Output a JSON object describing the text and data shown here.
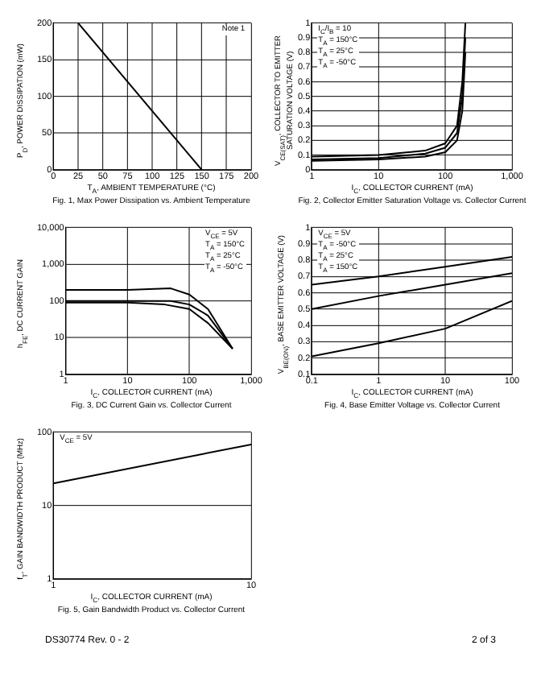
{
  "chart_data": [
    {
      "type": "line",
      "title": "Fig. 1, Max Power Dissipation vs. Ambient Temperature",
      "xlabel": "T$_{A}$, AMBIENT TEMPERATURE (°C)",
      "ylabel": "P$_{D}$, POWER DISSIPATION (mW)",
      "x": [
        25,
        150
      ],
      "series": [
        {
          "color": "#000000",
          "values": [
            200,
            0
          ]
        }
      ],
      "xlim": [
        0,
        200
      ],
      "xticks": [
        0,
        25,
        50,
        75,
        100,
        125,
        150,
        175,
        200
      ],
      "ylim": [
        0,
        200
      ],
      "yticks": [
        0,
        50,
        100,
        150,
        200
      ],
      "grid": true,
      "legend": false,
      "marker": "none",
      "line_style": "solid",
      "annotations": [
        "Note 1"
      ]
    },
    {
      "type": "line",
      "title": "Fig. 2, Collector Emitter Saturation Voltage vs. Collector Current",
      "xlabel": "I$_{C}$, COLLECTOR CURRENT (mA)",
      "ylabel": "V$_{CE(SAT)}$, COLLECTOR TO EMITTER SATURATION VOLTAGE (V)",
      "log": "x",
      "series": [
        {
          "color": "#000000",
          "x": [
            1,
            10,
            50,
            100,
            150,
            180,
            200
          ],
          "values": [
            0.09,
            0.1,
            0.13,
            0.18,
            0.3,
            0.6,
            1.0
          ]
        },
        {
          "color": "#000000",
          "x": [
            1,
            10,
            50,
            100,
            150,
            180,
            200
          ],
          "values": [
            0.07,
            0.08,
            0.11,
            0.15,
            0.25,
            0.5,
            0.9
          ]
        },
        {
          "color": "#000000",
          "x": [
            1,
            10,
            50,
            100,
            150,
            180,
            200
          ],
          "values": [
            0.06,
            0.07,
            0.09,
            0.12,
            0.2,
            0.4,
            0.8
          ]
        }
      ],
      "xlim": [
        1,
        1000
      ],
      "xticks": [
        1,
        10,
        100,
        {
          "value": 1000,
          "label": "1,000"
        }
      ],
      "ylim": [
        0,
        1.0
      ],
      "yticks": [
        0,
        0.1,
        0.2,
        0.3,
        0.4,
        0.5,
        0.6,
        0.7,
        0.8,
        0.9,
        1.0
      ],
      "grid": true,
      "legend": false,
      "marker": "none",
      "line_style": "solid",
      "annotations": [
        "I$_{C}$/I$_{B}$ = 10",
        "T$_{A}$ = 150°C",
        "T$_{A}$ = 25°C",
        "T$_{A}$ = -50°C"
      ]
    },
    {
      "type": "line",
      "title": "Fig. 3, DC Current Gain vs. Collector Current",
      "xlabel": "I$_{C}$, COLLECTOR CURRENT (mA)",
      "ylabel": "h$_{FE}$, DC CURRENT GAIN",
      "log": "xy",
      "series": [
        {
          "color": "#000000",
          "x": [
            1,
            10,
            50,
            100,
            200,
            500
          ],
          "values": [
            200,
            200,
            220,
            150,
            60,
            5
          ]
        },
        {
          "color": "#000000",
          "x": [
            1,
            10,
            50,
            100,
            200,
            500
          ],
          "values": [
            100,
            100,
            100,
            80,
            40,
            5
          ]
        },
        {
          "color": "#000000",
          "x": [
            1,
            10,
            40,
            100,
            200,
            500
          ],
          "values": [
            90,
            90,
            80,
            60,
            25,
            5
          ]
        }
      ],
      "xlim": [
        1,
        1000
      ],
      "xticks": [
        1,
        10,
        100,
        {
          "value": 1000,
          "label": "1,000"
        }
      ],
      "ylim": [
        1,
        10000
      ],
      "yticks": [
        1,
        10,
        100,
        {
          "value": 1000,
          "label": "1,000"
        },
        {
          "value": 10000,
          "label": "10,000"
        }
      ],
      "grid": true,
      "legend": false,
      "marker": "none",
      "line_style": "solid",
      "annotations": [
        "V$_{CE}$ = 5V",
        "T$_{A}$ = 150°C",
        "T$_{A}$ = 25°C",
        "T$_{A}$ = -50°C"
      ]
    },
    {
      "type": "line",
      "title": "Fig. 4, Base Emitter Voltage vs. Collector Current",
      "xlabel": "I$_{C}$, COLLECTOR CURRENT (mA)",
      "ylabel": "V$_{BE(ON)}$, BASE EMITTER VOLTAGE (V)",
      "log": "x",
      "x": [
        0.1,
        1,
        10,
        100
      ],
      "series": [
        {
          "color": "#000000",
          "values": [
            0.65,
            0.7,
            0.76,
            0.82
          ]
        },
        {
          "color": "#000000",
          "values": [
            0.5,
            0.58,
            0.65,
            0.72
          ]
        },
        {
          "color": "#000000",
          "values": [
            0.21,
            0.29,
            0.38,
            0.55
          ]
        }
      ],
      "xlim": [
        0.1,
        100
      ],
      "xticks": [
        0.1,
        1,
        10,
        100
      ],
      "ylim": [
        0.1,
        1.0
      ],
      "yticks": [
        0.1,
        0.2,
        0.3,
        0.4,
        0.5,
        0.6,
        0.7,
        0.8,
        0.9,
        1.0
      ],
      "grid": true,
      "legend": false,
      "marker": "none",
      "line_style": "solid",
      "annotations": [
        "V$_{CE}$ = 5V",
        "T$_{A}$ = -50°C",
        "T$_{A}$ = 25°C",
        "T$_{A}$ = 150°C"
      ]
    },
    {
      "type": "line",
      "title": "Fig. 5, Gain Bandwidth Product vs. Collector Current",
      "xlabel": "I$_{C}$, COLLECTOR CURRENT (mA)",
      "ylabel": "f$_{T}$, GAIN BANDWIDTH PRODUCT (MHz)",
      "log": "xy",
      "x": [
        1,
        10
      ],
      "series": [
        {
          "color": "#000000",
          "values": [
            20,
            68
          ]
        }
      ],
      "xlim": [
        1,
        10
      ],
      "xticks": [
        1,
        10
      ],
      "ylim": [
        1,
        100
      ],
      "yticks": [
        1,
        10,
        100
      ],
      "grid": true,
      "legend": false,
      "marker": "none",
      "line_style": "solid",
      "annotations": [
        "V$_{CE}$ = 5V"
      ]
    },
    {
      "type": "other",
      "annotations": [
        "DS30774 Rev. 0 - 2",
        "2 of 3"
      ]
    }
  ]
}
